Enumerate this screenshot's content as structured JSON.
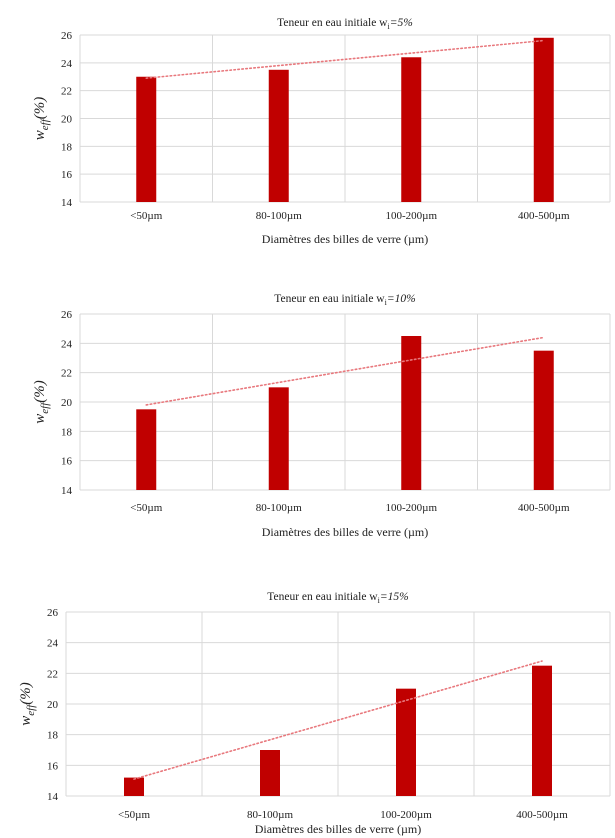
{
  "chart_data": [
    {
      "type": "bar",
      "title": "Teneur en eau initiale w",
      "title_sub": "i",
      "title_value": "=5%",
      "ylabel": "w",
      "ylabel_sub": "eff",
      "ylabel_unit": "(%)",
      "xlabel": "Diamètres des billes de verre (µm)",
      "categories": [
        "<50µm",
        "80-100µm",
        "100-200µm",
        "400-500µm"
      ],
      "values": [
        23.0,
        23.5,
        24.4,
        25.8
      ],
      "ylim": [
        14,
        26
      ],
      "yticks": [
        "14",
        "16",
        "18",
        "20",
        "22",
        "24",
        "26"
      ],
      "trendline": [
        22.9,
        25.6
      ],
      "grid": true,
      "bar_color": "#c00000",
      "trend_color": "#e8787d"
    },
    {
      "type": "bar",
      "title": "Teneur en eau initiale w",
      "title_sub": "i",
      "title_value": "=10%",
      "ylabel": "w",
      "ylabel_sub": "eff",
      "ylabel_unit": "(%)",
      "xlabel": "Diamètres des billes de verre (µm)",
      "categories": [
        "<50µm",
        "80-100µm",
        "100-200µm",
        "400-500µm"
      ],
      "values": [
        19.5,
        21.0,
        24.5,
        23.5
      ],
      "ylim": [
        14,
        26
      ],
      "yticks": [
        "14",
        "16",
        "18",
        "20",
        "22",
        "24",
        "26"
      ],
      "trendline": [
        19.8,
        24.4
      ],
      "grid": true,
      "bar_color": "#c00000",
      "trend_color": "#e8787d"
    },
    {
      "type": "bar",
      "title": "Teneur en eau initiale w",
      "title_sub": "i",
      "title_value": "=15%",
      "ylabel": "w",
      "ylabel_sub": "eff",
      "ylabel_unit": "(%)",
      "xlabel": "Diamètres des billes de verre (µm)",
      "categories": [
        "<50µm",
        "80-100µm",
        "100-200µm",
        "400-500µm"
      ],
      "values": [
        15.2,
        17.0,
        21.0,
        22.5
      ],
      "ylim": [
        14,
        26
      ],
      "yticks": [
        "14",
        "16",
        "18",
        "20",
        "22",
        "24",
        "26"
      ],
      "trendline": [
        15.1,
        22.8
      ],
      "grid": true,
      "bar_color": "#c00000",
      "trend_color": "#e8787d"
    }
  ]
}
